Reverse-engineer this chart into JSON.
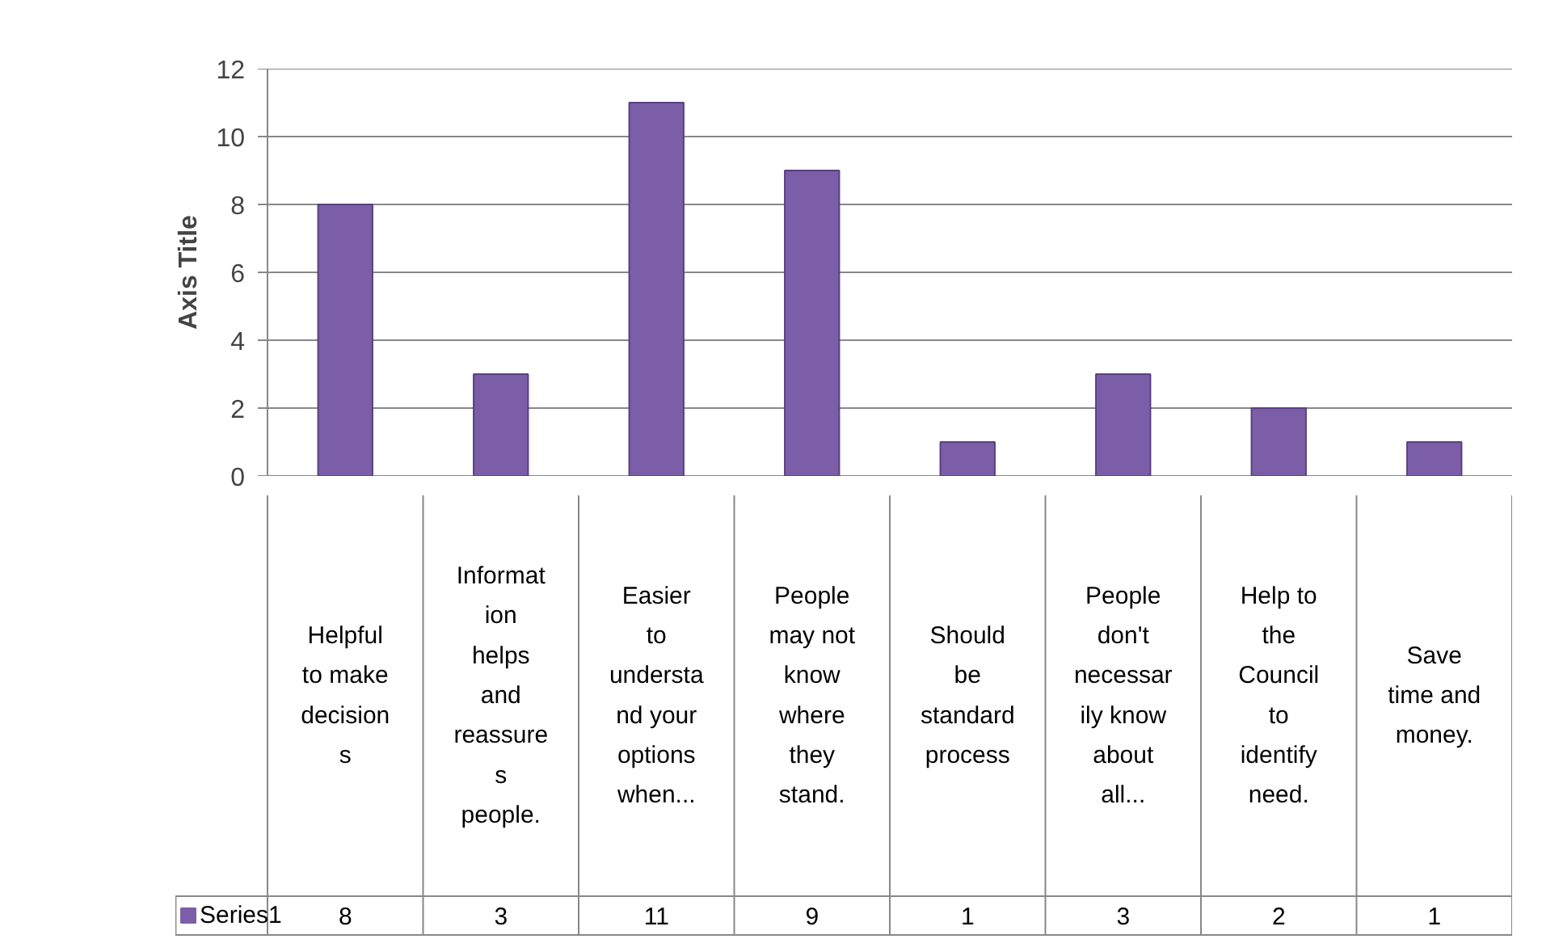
{
  "chart_data": {
    "type": "bar",
    "categories": [
      "Helpful to make decisions",
      "Information helps and reassures people.",
      "Easier to understand your options when...",
      "People may not know where they stand.",
      "Should be standard process",
      "People don't necessarily know about all...",
      "Help to the Council to identify need.",
      "Save time and money."
    ],
    "series": [
      {
        "name": "Series1",
        "color": "#7b5ea7",
        "values": [
          8,
          3,
          11,
          9,
          1,
          3,
          2,
          1
        ]
      }
    ],
    "ylabel": "Axis Title",
    "ylim": [
      0,
      12
    ],
    "yticks": [
      0,
      2,
      4,
      6,
      8,
      10,
      12
    ],
    "grid": "y",
    "data_labels": true,
    "legend": "bottom"
  }
}
